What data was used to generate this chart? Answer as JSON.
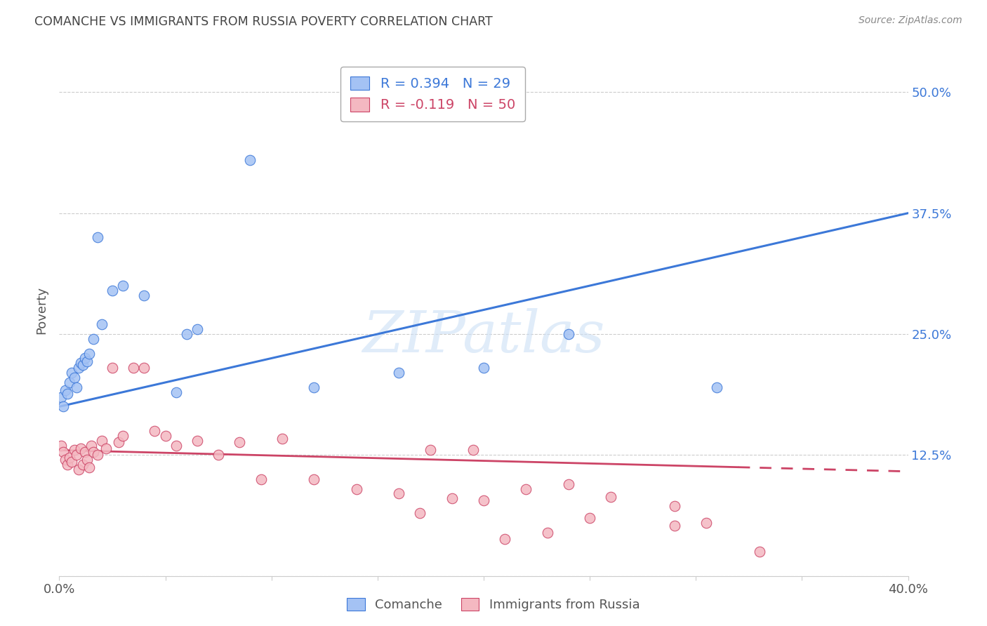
{
  "title": "COMANCHE VS IMMIGRANTS FROM RUSSIA POVERTY CORRELATION CHART",
  "source": "Source: ZipAtlas.com",
  "ylabel": "Poverty",
  "xlim": [
    0.0,
    0.4
  ],
  "ylim": [
    0.0,
    0.55
  ],
  "xticks": [
    0.0,
    0.05,
    0.1,
    0.15,
    0.2,
    0.25,
    0.3,
    0.35,
    0.4
  ],
  "ytick_positions": [
    0.0,
    0.125,
    0.25,
    0.375,
    0.5
  ],
  "yticklabels": [
    "",
    "12.5%",
    "25.0%",
    "37.5%",
    "50.0%"
  ],
  "blue_R": 0.394,
  "blue_N": 29,
  "pink_R": -0.119,
  "pink_N": 50,
  "blue_color": "#a4c2f4",
  "pink_color": "#f4b8c1",
  "blue_line_color": "#3c78d8",
  "pink_line_color": "#cc4466",
  "watermark": "ZIPatlas",
  "blue_intercept": 0.175,
  "blue_slope": 0.5,
  "pink_intercept": 0.13,
  "pink_slope": -0.055,
  "comanche_x": [
    0.001,
    0.002,
    0.003,
    0.004,
    0.005,
    0.006,
    0.007,
    0.008,
    0.009,
    0.01,
    0.011,
    0.012,
    0.013,
    0.014,
    0.016,
    0.018,
    0.02,
    0.025,
    0.03,
    0.04,
    0.055,
    0.06,
    0.065,
    0.09,
    0.12,
    0.16,
    0.2,
    0.24,
    0.31
  ],
  "comanche_y": [
    0.185,
    0.175,
    0.192,
    0.188,
    0.2,
    0.21,
    0.205,
    0.195,
    0.215,
    0.22,
    0.218,
    0.225,
    0.222,
    0.23,
    0.245,
    0.35,
    0.26,
    0.295,
    0.3,
    0.29,
    0.19,
    0.25,
    0.255,
    0.43,
    0.195,
    0.21,
    0.215,
    0.25,
    0.195
  ],
  "russia_x": [
    0.001,
    0.002,
    0.003,
    0.004,
    0.005,
    0.006,
    0.007,
    0.008,
    0.009,
    0.01,
    0.011,
    0.012,
    0.013,
    0.014,
    0.015,
    0.016,
    0.018,
    0.02,
    0.022,
    0.025,
    0.028,
    0.03,
    0.035,
    0.04,
    0.045,
    0.05,
    0.055,
    0.065,
    0.075,
    0.085,
    0.095,
    0.105,
    0.12,
    0.14,
    0.16,
    0.175,
    0.195,
    0.2,
    0.22,
    0.24,
    0.26,
    0.29,
    0.305,
    0.17,
    0.25,
    0.185,
    0.23,
    0.21,
    0.33,
    0.29
  ],
  "russia_y": [
    0.135,
    0.128,
    0.12,
    0.115,
    0.122,
    0.118,
    0.13,
    0.125,
    0.11,
    0.132,
    0.115,
    0.128,
    0.12,
    0.112,
    0.135,
    0.128,
    0.125,
    0.14,
    0.132,
    0.215,
    0.138,
    0.145,
    0.215,
    0.215,
    0.15,
    0.145,
    0.135,
    0.14,
    0.125,
    0.138,
    0.1,
    0.142,
    0.1,
    0.09,
    0.085,
    0.13,
    0.13,
    0.078,
    0.09,
    0.095,
    0.082,
    0.072,
    0.055,
    0.065,
    0.06,
    0.08,
    0.045,
    0.038,
    0.025,
    0.052
  ]
}
